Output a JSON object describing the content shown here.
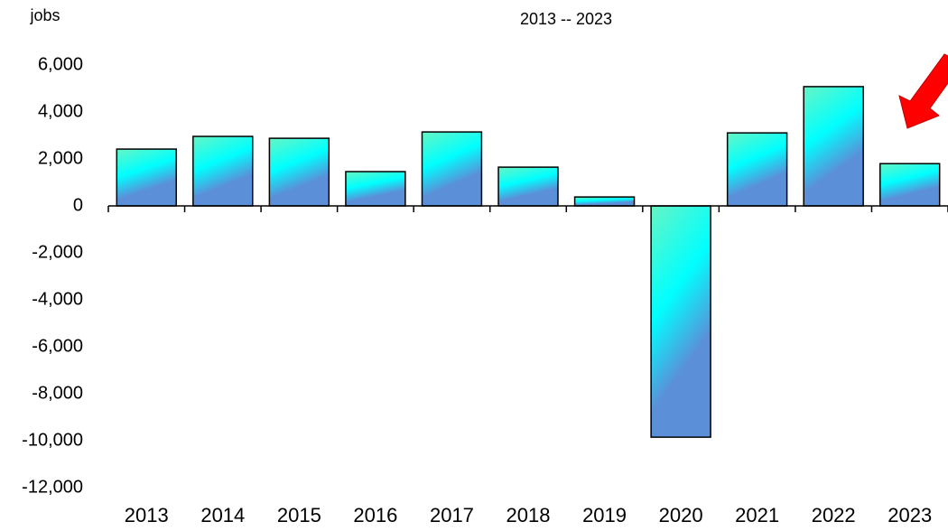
{
  "chart_data": {
    "type": "bar",
    "title": "2013 -- 2023",
    "y_label": "jobs",
    "categories": [
      "2013",
      "2014",
      "2015",
      "2016",
      "2017",
      "2018",
      "2019",
      "2020",
      "2021",
      "2022",
      "2023"
    ],
    "values": [
      2420,
      2960,
      2880,
      1460,
      3150,
      1650,
      380,
      -9850,
      3110,
      5080,
      1800
    ],
    "colors": [
      "#66f5c4",
      "#00ffff",
      "#5b8fd8"
    ],
    "ylim": [
      -12000,
      6000
    ],
    "yticks": [
      {
        "value": 6000,
        "label": "6,000"
      },
      {
        "value": 4000,
        "label": "4,000"
      },
      {
        "value": 2000,
        "label": "2,000"
      },
      0,
      {
        "value": -2000,
        "label": "-2,000"
      },
      {
        "value": -4000,
        "label": "-4,000"
      },
      {
        "value": -6000,
        "label": "-6,000"
      },
      {
        "value": -8000,
        "label": "-8,000"
      },
      {
        "value": -10000,
        "label": "-10,000"
      },
      {
        "value": -12000,
        "label": "-12,000"
      }
    ],
    "grid": false
  }
}
